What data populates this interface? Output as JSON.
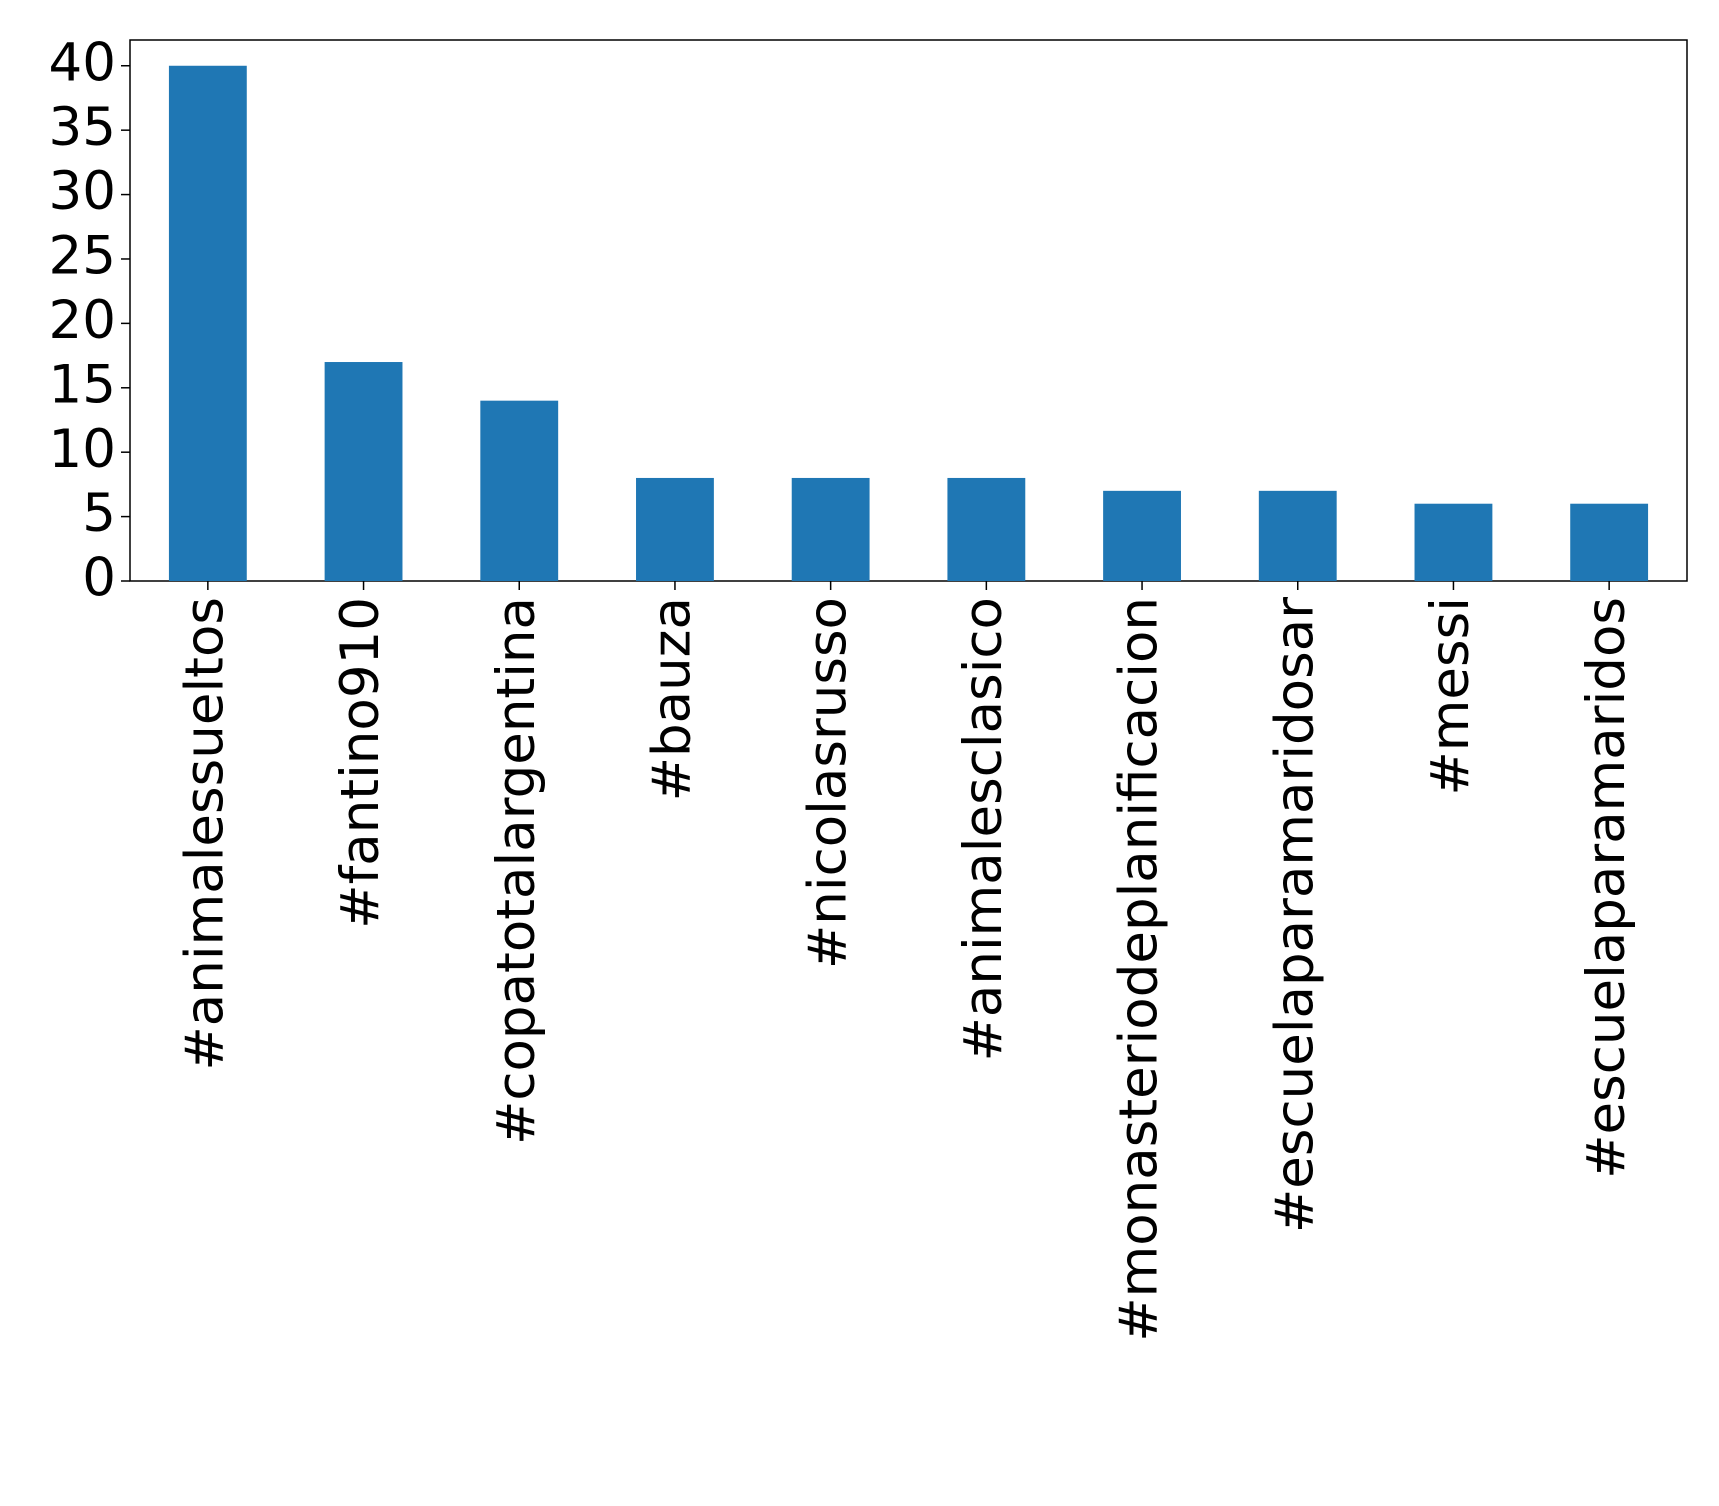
{
  "chart_data": {
    "type": "bar",
    "categories": [
      "#animalessueltos",
      "#fantino910",
      "#copatotalargentina",
      "#bauza",
      "#nicolasrusso",
      "#animalesclasico",
      "#monasteriodeplanificacion",
      "#escuelaparamaridosar",
      "#messi",
      "#escuelaparamaridos"
    ],
    "values": [
      40,
      17,
      14,
      8,
      8,
      8,
      7,
      7,
      6,
      6
    ],
    "color": "#1f77b4",
    "ylim": [
      0,
      42
    ],
    "yticks": [
      0,
      5,
      10,
      15,
      20,
      25,
      30,
      35,
      40
    ],
    "grid": false
  }
}
